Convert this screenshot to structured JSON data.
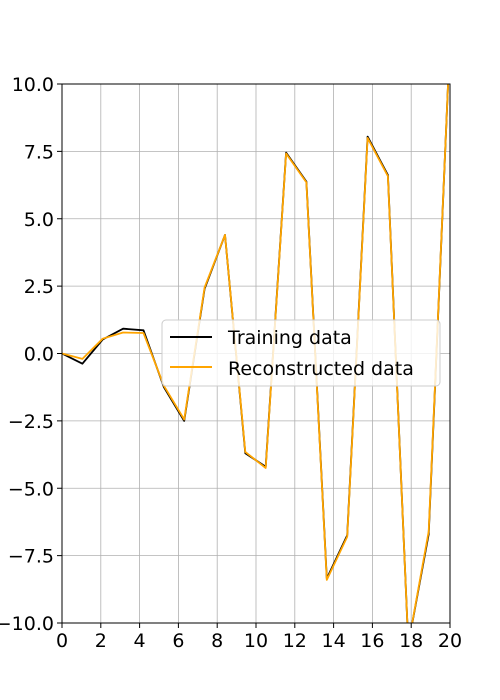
{
  "chart_data": {
    "type": "line",
    "title": "",
    "xlabel": "",
    "ylabel": "",
    "xlim": [
      0,
      20
    ],
    "ylim": [
      -10,
      10
    ],
    "grid": true,
    "legend_position": "center-right",
    "x_ticks": [
      0,
      2,
      4,
      6,
      8,
      10,
      12,
      14,
      16,
      18,
      20
    ],
    "x_tick_labels": [
      "0",
      "2",
      "4",
      "6",
      "8",
      "10",
      "12",
      "14",
      "16",
      "18",
      "20"
    ],
    "y_ticks": [
      -10,
      -7.5,
      -5,
      -2.5,
      0,
      2.5,
      5,
      7.5,
      10
    ],
    "y_tick_labels": [
      "−10.0",
      "−7.5",
      "−5.0",
      "−2.5",
      "0.0",
      "2.5",
      "5.0",
      "7.5",
      "10.0"
    ],
    "x": [
      0,
      1.05,
      2.1,
      3.15,
      4.2,
      5.25,
      6.3,
      7.35,
      8.4,
      9.45,
      10.5,
      11.55,
      12.6,
      13.65,
      14.7,
      15.75,
      16.8,
      17.85,
      18.9,
      19.95
    ],
    "series": [
      {
        "name": "Training data",
        "color": "#000000",
        "values": [
          0.0,
          -0.38,
          0.52,
          0.92,
          0.86,
          -1.25,
          -2.5,
          2.4,
          4.4,
          -3.7,
          -4.2,
          7.45,
          6.38,
          -8.35,
          -6.75,
          8.05,
          6.62,
          -10.8,
          -6.7,
          10.8
        ]
      },
      {
        "name": "Reconstructed data",
        "color": "#ffa500",
        "values": [
          0.0,
          -0.2,
          0.55,
          0.78,
          0.76,
          -1.2,
          -2.45,
          2.45,
          4.4,
          -3.65,
          -4.25,
          7.42,
          6.35,
          -8.4,
          -6.8,
          8.0,
          6.58,
          -10.8,
          -6.6,
          10.8
        ]
      }
    ]
  }
}
